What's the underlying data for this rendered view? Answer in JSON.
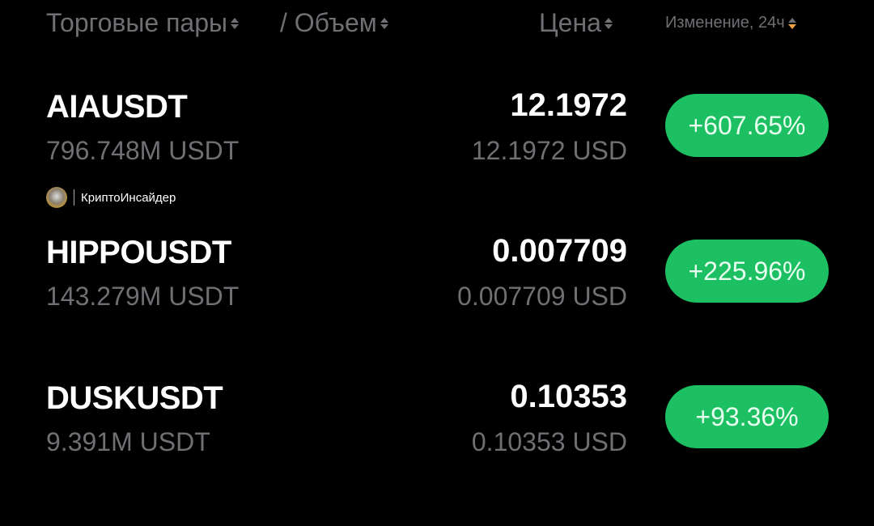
{
  "header": {
    "pairs_label": "Торговые пары",
    "volume_label": "/ Объем",
    "price_label": "Цена",
    "change_label": "Изменение, 24ч",
    "active_sort_color": "#f0a040"
  },
  "rows": [
    {
      "pair": "AIAUSDT",
      "volume": "796.748M USDT",
      "price": "12.1972",
      "price_usd": "12.1972 USD",
      "change": "+607.65%"
    },
    {
      "pair": "HIPPOUSDT",
      "volume": "143.279M USDT",
      "price": "0.007709",
      "price_usd": "0.007709 USD",
      "change": "+225.96%"
    },
    {
      "pair": "DUSKUSDT",
      "volume": "9.391M USDT",
      "price": "0.10353",
      "price_usd": "0.10353 USD",
      "change": "+93.36%"
    }
  ],
  "watermark": {
    "text": "КриптоИнсайдер"
  },
  "colors": {
    "positive": "#1dbf63",
    "muted": "#6f6f74",
    "background": "#000000"
  }
}
